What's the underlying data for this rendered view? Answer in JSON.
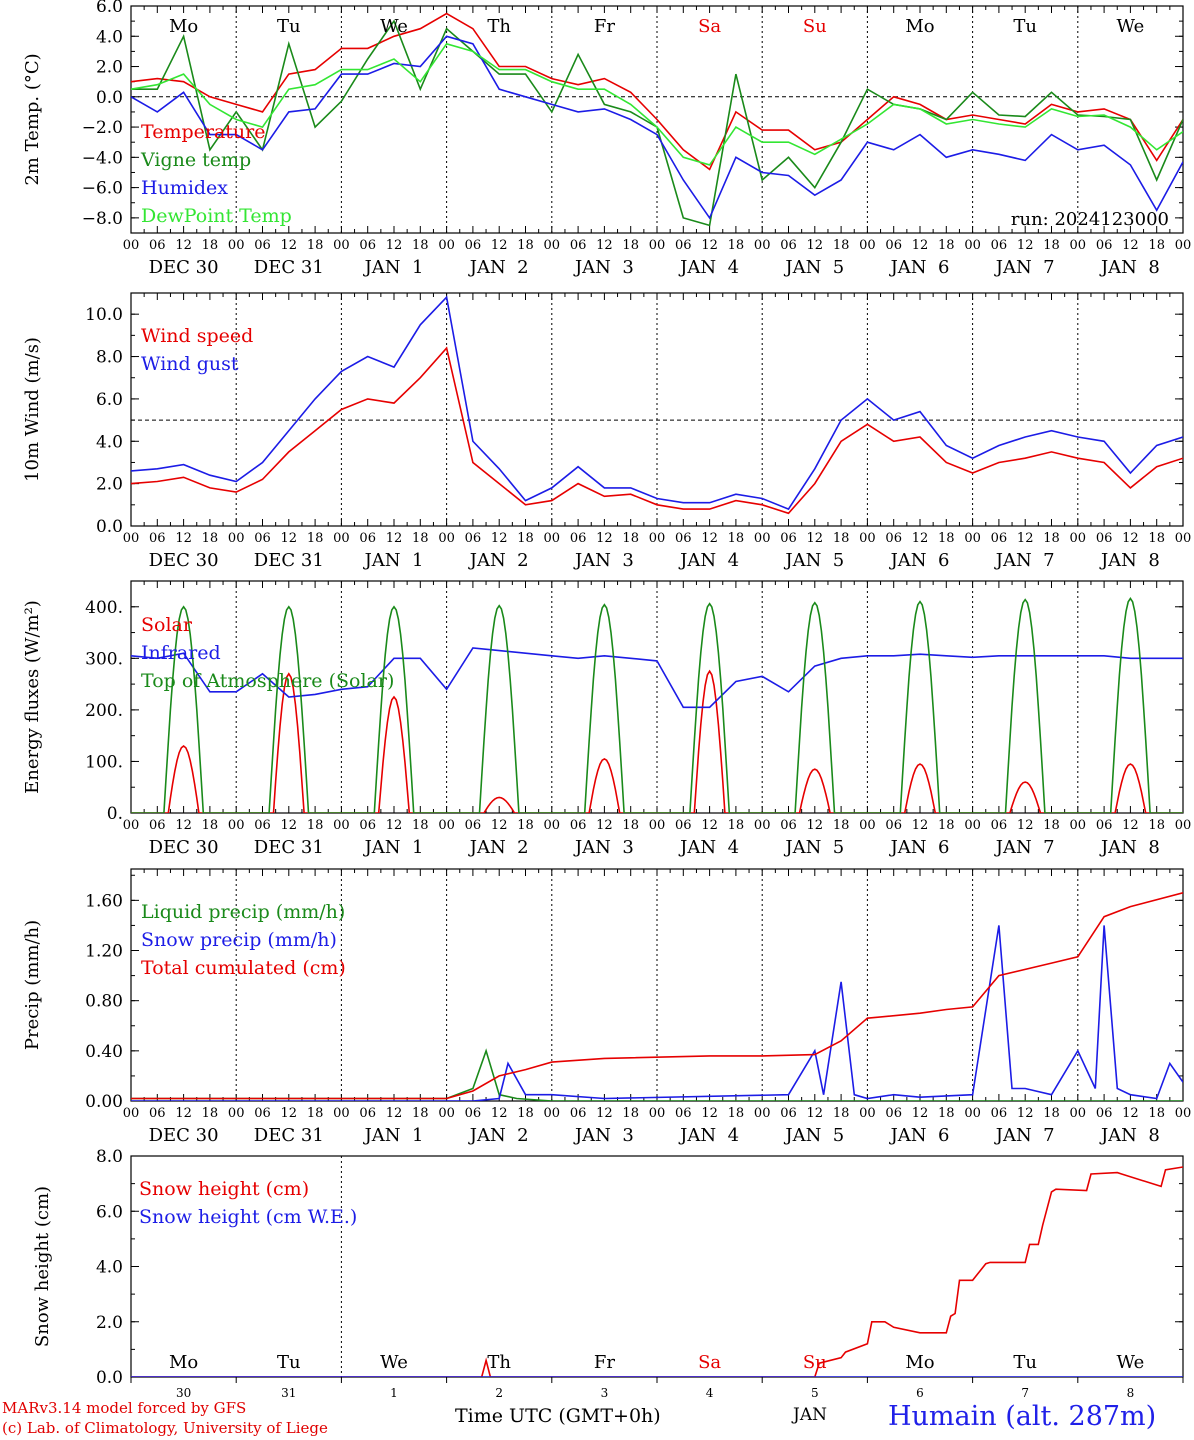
{
  "footer": {
    "credit_line1": "MARv3.14 model forced by GFS",
    "credit_line2": "(c) Lab. of Climatology, University of Liege",
    "xaxis_title": "Time UTC (GMT+0h)",
    "month_label": "JAN",
    "station": "Humain (alt. 287m)"
  },
  "colors": {
    "red": "#e60000",
    "green": "#1a8a1a",
    "blue": "#1c1ce6",
    "lightgreen": "#33e633",
    "black": "#000000"
  },
  "time_axis": {
    "day_names": [
      "Mo",
      "Tu",
      "We",
      "Th",
      "Fr",
      "Sa",
      "Su",
      "Mo",
      "Tu",
      "We"
    ],
    "weekend_days": [
      "Sa",
      "Su"
    ],
    "date_labels": [
      "DEC 30",
      "DEC 31",
      "JAN  1",
      "JAN  2",
      "JAN  3",
      "JAN  4",
      "JAN  5",
      "JAN  6",
      "JAN  7",
      "JAN  8"
    ],
    "hour_ticks": [
      "00",
      "06",
      "12",
      "18"
    ],
    "day_numbers": [
      "30",
      "31",
      "1",
      "2",
      "3",
      "4",
      "5",
      "6",
      "7",
      "8"
    ]
  },
  "chart_data": [
    {
      "type": "line",
      "ylabel": "2m Temp. (°C)",
      "ylim": [
        -9,
        6
      ],
      "yticks": [
        "6.0",
        "4.0",
        "2.0",
        "0.0",
        "−2.0",
        "−4.0",
        "−6.0",
        "−8.0"
      ],
      "ytick_values": [
        6,
        4,
        2,
        0,
        -2,
        -4,
        -6,
        -8
      ],
      "annotation": "run: 2024123000",
      "reference_line": 0,
      "series": [
        {
          "name": "Temperature",
          "color": "red",
          "x": [
            0,
            6,
            12,
            18,
            24,
            30,
            36,
            42,
            48,
            54,
            60,
            66,
            72,
            78,
            84,
            90,
            96,
            102,
            108,
            114,
            120,
            126,
            132,
            138,
            144,
            150,
            156,
            162,
            168,
            174,
            180,
            186,
            192,
            198,
            204,
            210,
            216,
            222,
            228,
            234,
            240
          ],
          "y": [
            1.0,
            1.2,
            1.0,
            0.0,
            -0.5,
            -1.0,
            1.5,
            1.8,
            3.2,
            3.2,
            4.0,
            4.5,
            5.5,
            4.5,
            2.0,
            2.0,
            1.2,
            0.8,
            1.2,
            0.3,
            -1.5,
            -3.5,
            -4.8,
            -1.0,
            -2.2,
            -2.2,
            -3.5,
            -3.0,
            -1.5,
            0.0,
            -0.5,
            -1.5,
            -1.2,
            -1.5,
            -1.8,
            -0.5,
            -1.0,
            -0.8,
            -1.5,
            -4.2,
            -1.5
          ]
        },
        {
          "name": "Vigne temp",
          "color": "green",
          "x": [
            0,
            6,
            12,
            18,
            24,
            30,
            36,
            42,
            48,
            54,
            60,
            66,
            72,
            78,
            84,
            90,
            96,
            102,
            108,
            114,
            120,
            126,
            132,
            138,
            144,
            150,
            156,
            162,
            168,
            174,
            180,
            186,
            192,
            198,
            204,
            210,
            216,
            222,
            228,
            234,
            240
          ],
          "y": [
            0.5,
            0.5,
            4.0,
            -3.5,
            -1.0,
            -3.5,
            3.5,
            -2.0,
            -0.3,
            2.5,
            5.0,
            0.5,
            4.5,
            3.0,
            1.5,
            1.5,
            -1.0,
            2.8,
            -0.5,
            -1.0,
            -2.0,
            -8.0,
            -8.5,
            1.5,
            -5.5,
            -4.0,
            -6.0,
            -3.0,
            0.5,
            -0.5,
            -0.8,
            -1.5,
            0.3,
            -1.2,
            -1.3,
            0.3,
            -1.2,
            -1.3,
            -1.5,
            -5.5,
            -1.5
          ]
        },
        {
          "name": "Humidex",
          "color": "blue",
          "x": [
            0,
            6,
            12,
            18,
            24,
            30,
            36,
            42,
            48,
            54,
            60,
            66,
            72,
            78,
            84,
            90,
            96,
            102,
            108,
            114,
            120,
            126,
            132,
            138,
            144,
            150,
            156,
            162,
            168,
            174,
            180,
            186,
            192,
            198,
            204,
            210,
            216,
            222,
            228,
            234,
            240
          ],
          "y": [
            0.0,
            -1.0,
            0.3,
            -2.5,
            -2.5,
            -3.5,
            -1.0,
            -0.8,
            1.5,
            1.5,
            2.2,
            2.0,
            4.0,
            3.5,
            0.5,
            0.0,
            -0.5,
            -1.0,
            -0.8,
            -1.5,
            -2.5,
            -5.5,
            -8.0,
            -4.0,
            -5.0,
            -5.2,
            -6.5,
            -5.5,
            -3.0,
            -3.5,
            -2.5,
            -4.0,
            -3.5,
            -3.8,
            -4.2,
            -2.5,
            -3.5,
            -3.2,
            -4.5,
            -7.5,
            -4.3
          ]
        },
        {
          "name": "DewPoint Temp",
          "color": "lightgreen",
          "x": [
            0,
            6,
            12,
            18,
            24,
            30,
            36,
            42,
            48,
            54,
            60,
            66,
            72,
            78,
            84,
            90,
            96,
            102,
            108,
            114,
            120,
            126,
            132,
            138,
            144,
            150,
            156,
            162,
            168,
            174,
            180,
            186,
            192,
            198,
            204,
            210,
            216,
            222,
            228,
            234,
            240
          ],
          "y": [
            0.5,
            0.8,
            1.5,
            -0.5,
            -1.5,
            -2.0,
            0.5,
            0.8,
            1.8,
            1.8,
            2.5,
            1.0,
            3.5,
            3.0,
            1.8,
            1.8,
            1.0,
            0.5,
            0.5,
            -0.5,
            -2.0,
            -4.0,
            -4.5,
            -2.0,
            -3.0,
            -3.0,
            -3.8,
            -2.8,
            -1.8,
            -0.5,
            -0.8,
            -1.8,
            -1.5,
            -1.8,
            -2.0,
            -0.8,
            -1.3,
            -1.2,
            -2.0,
            -3.5,
            -2.3
          ]
        }
      ]
    },
    {
      "type": "line",
      "ylabel": "10m Wind (m/s)",
      "ylim": [
        0,
        11
      ],
      "yticks": [
        "10.0",
        "8.0",
        "6.0",
        "4.0",
        "2.0",
        "0.0"
      ],
      "ytick_values": [
        10,
        8,
        6,
        4,
        2,
        0
      ],
      "reference_line": 5,
      "series": [
        {
          "name": "Wind speed",
          "color": "red",
          "x": [
            0,
            6,
            12,
            18,
            24,
            30,
            36,
            42,
            48,
            54,
            60,
            66,
            72,
            78,
            84,
            90,
            96,
            102,
            108,
            114,
            120,
            126,
            132,
            138,
            144,
            150,
            156,
            162,
            168,
            174,
            180,
            186,
            192,
            198,
            204,
            210,
            216,
            222,
            228,
            234,
            240
          ],
          "y": [
            2.0,
            2.1,
            2.3,
            1.8,
            1.6,
            2.2,
            3.5,
            4.5,
            5.5,
            6.0,
            5.8,
            7.0,
            8.4,
            3.0,
            2.0,
            1.0,
            1.2,
            2.0,
            1.4,
            1.5,
            1.0,
            0.8,
            0.8,
            1.2,
            1.0,
            0.6,
            2.0,
            4.0,
            4.8,
            4.0,
            4.2,
            3.0,
            2.5,
            3.0,
            3.2,
            3.5,
            3.2,
            3.0,
            1.8,
            2.8,
            3.2
          ]
        },
        {
          "name": "Wind gust",
          "color": "blue",
          "x": [
            0,
            6,
            12,
            18,
            24,
            30,
            36,
            42,
            48,
            54,
            60,
            66,
            72,
            78,
            84,
            90,
            96,
            102,
            108,
            114,
            120,
            126,
            132,
            138,
            144,
            150,
            156,
            162,
            168,
            174,
            180,
            186,
            192,
            198,
            204,
            210,
            216,
            222,
            228,
            234,
            240
          ],
          "y": [
            2.6,
            2.7,
            2.9,
            2.4,
            2.1,
            3.0,
            4.5,
            6.0,
            7.3,
            8.0,
            7.5,
            9.5,
            10.8,
            4.0,
            2.7,
            1.2,
            1.8,
            2.8,
            1.8,
            1.8,
            1.3,
            1.1,
            1.1,
            1.5,
            1.3,
            0.8,
            2.7,
            5.0,
            6.0,
            5.0,
            5.4,
            3.8,
            3.2,
            3.8,
            4.2,
            4.5,
            4.2,
            4.0,
            2.5,
            3.8,
            4.2
          ]
        }
      ]
    },
    {
      "type": "line",
      "ylabel": "Energy fluxes (W/m²)",
      "ylim": [
        0,
        450
      ],
      "yticks": [
        "400.",
        "300.",
        "200.",
        "100.",
        "0."
      ],
      "ytick_values": [
        400,
        300,
        200,
        100,
        0
      ],
      "series": [
        {
          "name": "Solar",
          "color": "red",
          "peaks": [
            130,
            270,
            225,
            30,
            105,
            275,
            85,
            95,
            60,
            95
          ]
        },
        {
          "name": "Infrared",
          "color": "blue",
          "x": [
            0,
            6,
            12,
            18,
            24,
            30,
            36,
            42,
            48,
            54,
            60,
            66,
            72,
            78,
            84,
            90,
            96,
            102,
            108,
            114,
            120,
            126,
            132,
            138,
            144,
            150,
            156,
            162,
            168,
            174,
            180,
            186,
            192,
            198,
            204,
            210,
            216,
            222,
            228,
            234,
            240
          ],
          "y": [
            305,
            300,
            310,
            235,
            235,
            270,
            225,
            230,
            240,
            245,
            300,
            300,
            240,
            320,
            315,
            310,
            305,
            300,
            305,
            300,
            295,
            205,
            205,
            255,
            265,
            235,
            285,
            300,
            305,
            305,
            308,
            305,
            302,
            305,
            305,
            305,
            305,
            305,
            300,
            300,
            300
          ]
        },
        {
          "name": "Top of Atmosphere (Solar)",
          "color": "green",
          "peaks": [
            400,
            400,
            400,
            402,
            404,
            406,
            408,
            410,
            414,
            416
          ]
        }
      ]
    },
    {
      "type": "line",
      "ylabel": "Precip (mm/h)",
      "ylim": [
        0,
        1.85
      ],
      "yticks": [
        "1.60",
        "1.20",
        "0.80",
        "0.40",
        "0.00"
      ],
      "ytick_values": [
        1.6,
        1.2,
        0.8,
        0.4,
        0.0
      ],
      "series": [
        {
          "name": "Liquid precip (mm/h)",
          "color": "green",
          "x": [
            0,
            60,
            72,
            78,
            81,
            84,
            88,
            96,
            240
          ],
          "y": [
            0.02,
            0.02,
            0.02,
            0.1,
            0.4,
            0.05,
            0.02,
            0.0,
            0.0
          ]
        },
        {
          "name": "Snow precip (mm/h)",
          "color": "blue",
          "x": [
            0,
            78,
            84,
            86,
            90,
            96,
            108,
            150,
            156,
            158,
            162,
            165,
            168,
            174,
            180,
            192,
            198,
            201,
            204,
            210,
            216,
            220,
            222,
            225,
            228,
            234,
            237,
            240
          ],
          "y": [
            0,
            0,
            0.02,
            0.3,
            0.05,
            0.05,
            0.02,
            0.05,
            0.4,
            0.05,
            0.95,
            0.05,
            0.02,
            0.05,
            0.03,
            0.05,
            1.4,
            0.1,
            0.1,
            0.05,
            0.4,
            0.1,
            1.4,
            0.1,
            0.05,
            0.02,
            0.3,
            0.15
          ]
        },
        {
          "name": "Total cumulated (cm)",
          "color": "red",
          "x": [
            0,
            72,
            78,
            84,
            90,
            96,
            108,
            132,
            144,
            156,
            162,
            168,
            180,
            186,
            192,
            198,
            210,
            216,
            222,
            228,
            240
          ],
          "y": [
            0.02,
            0.02,
            0.08,
            0.2,
            0.25,
            0.31,
            0.34,
            0.36,
            0.36,
            0.37,
            0.48,
            0.66,
            0.7,
            0.73,
            0.75,
            1.0,
            1.1,
            1.15,
            1.47,
            1.55,
            1.66
          ]
        }
      ]
    },
    {
      "type": "line",
      "ylabel": "Snow height (cm)",
      "ylim": [
        0,
        8
      ],
      "yticks": [
        "8.0",
        "6.0",
        "4.0",
        "2.0",
        "0.0"
      ],
      "ytick_values": [
        8,
        6,
        4,
        2,
        0
      ],
      "series": [
        {
          "name": "Snow height (cm)",
          "color": "red",
          "x": [
            0,
            80,
            81,
            82,
            83,
            156,
            157,
            162,
            163,
            168,
            169,
            172,
            174,
            180,
            182,
            186,
            187,
            188,
            189,
            192,
            193,
            195,
            196,
            204,
            205,
            207,
            208,
            210,
            211,
            218,
            219,
            225,
            226,
            235,
            236,
            240
          ],
          "y": [
            0,
            0,
            0.6,
            0,
            0,
            0,
            0.5,
            0.7,
            0.9,
            1.2,
            2.0,
            2.0,
            1.8,
            1.6,
            1.6,
            1.6,
            2.2,
            2.3,
            3.5,
            3.5,
            3.7,
            4.1,
            4.15,
            4.15,
            4.8,
            4.8,
            5.5,
            6.7,
            6.8,
            6.75,
            7.35,
            7.4,
            7.35,
            6.9,
            7.5,
            7.6
          ]
        },
        {
          "name": "Snow height (cm W.E.)",
          "color": "blue",
          "x": [
            0,
            240
          ],
          "y": [
            0,
            0
          ]
        }
      ]
    }
  ]
}
